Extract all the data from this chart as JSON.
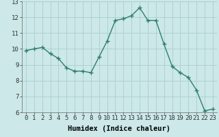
{
  "x": [
    0,
    1,
    2,
    3,
    4,
    5,
    6,
    7,
    8,
    9,
    10,
    11,
    12,
    13,
    14,
    15,
    16,
    17,
    18,
    19,
    20,
    21,
    22,
    23
  ],
  "y": [
    9.9,
    10.0,
    10.1,
    9.7,
    9.4,
    8.8,
    8.6,
    8.6,
    8.5,
    9.5,
    10.5,
    11.8,
    11.9,
    12.1,
    12.6,
    11.8,
    11.8,
    10.3,
    8.9,
    8.5,
    8.2,
    7.4,
    6.1,
    6.2
  ],
  "line_color": "#2e7d6e",
  "marker_color": "#2e7d6e",
  "bg_color": "#cce8e8",
  "grid_color": "#aacece",
  "xlabel": "Humidex (Indice chaleur)",
  "xlim": [
    -0.5,
    23.5
  ],
  "ylim": [
    6,
    13
  ],
  "yticks": [
    6,
    7,
    8,
    9,
    10,
    11,
    12,
    13
  ],
  "xticks": [
    0,
    1,
    2,
    3,
    4,
    5,
    6,
    7,
    8,
    9,
    10,
    11,
    12,
    13,
    14,
    15,
    16,
    17,
    18,
    19,
    20,
    21,
    22,
    23
  ],
  "xlabel_fontsize": 7.5,
  "tick_fontsize": 6.5,
  "linewidth": 1.0,
  "markersize": 2.5
}
